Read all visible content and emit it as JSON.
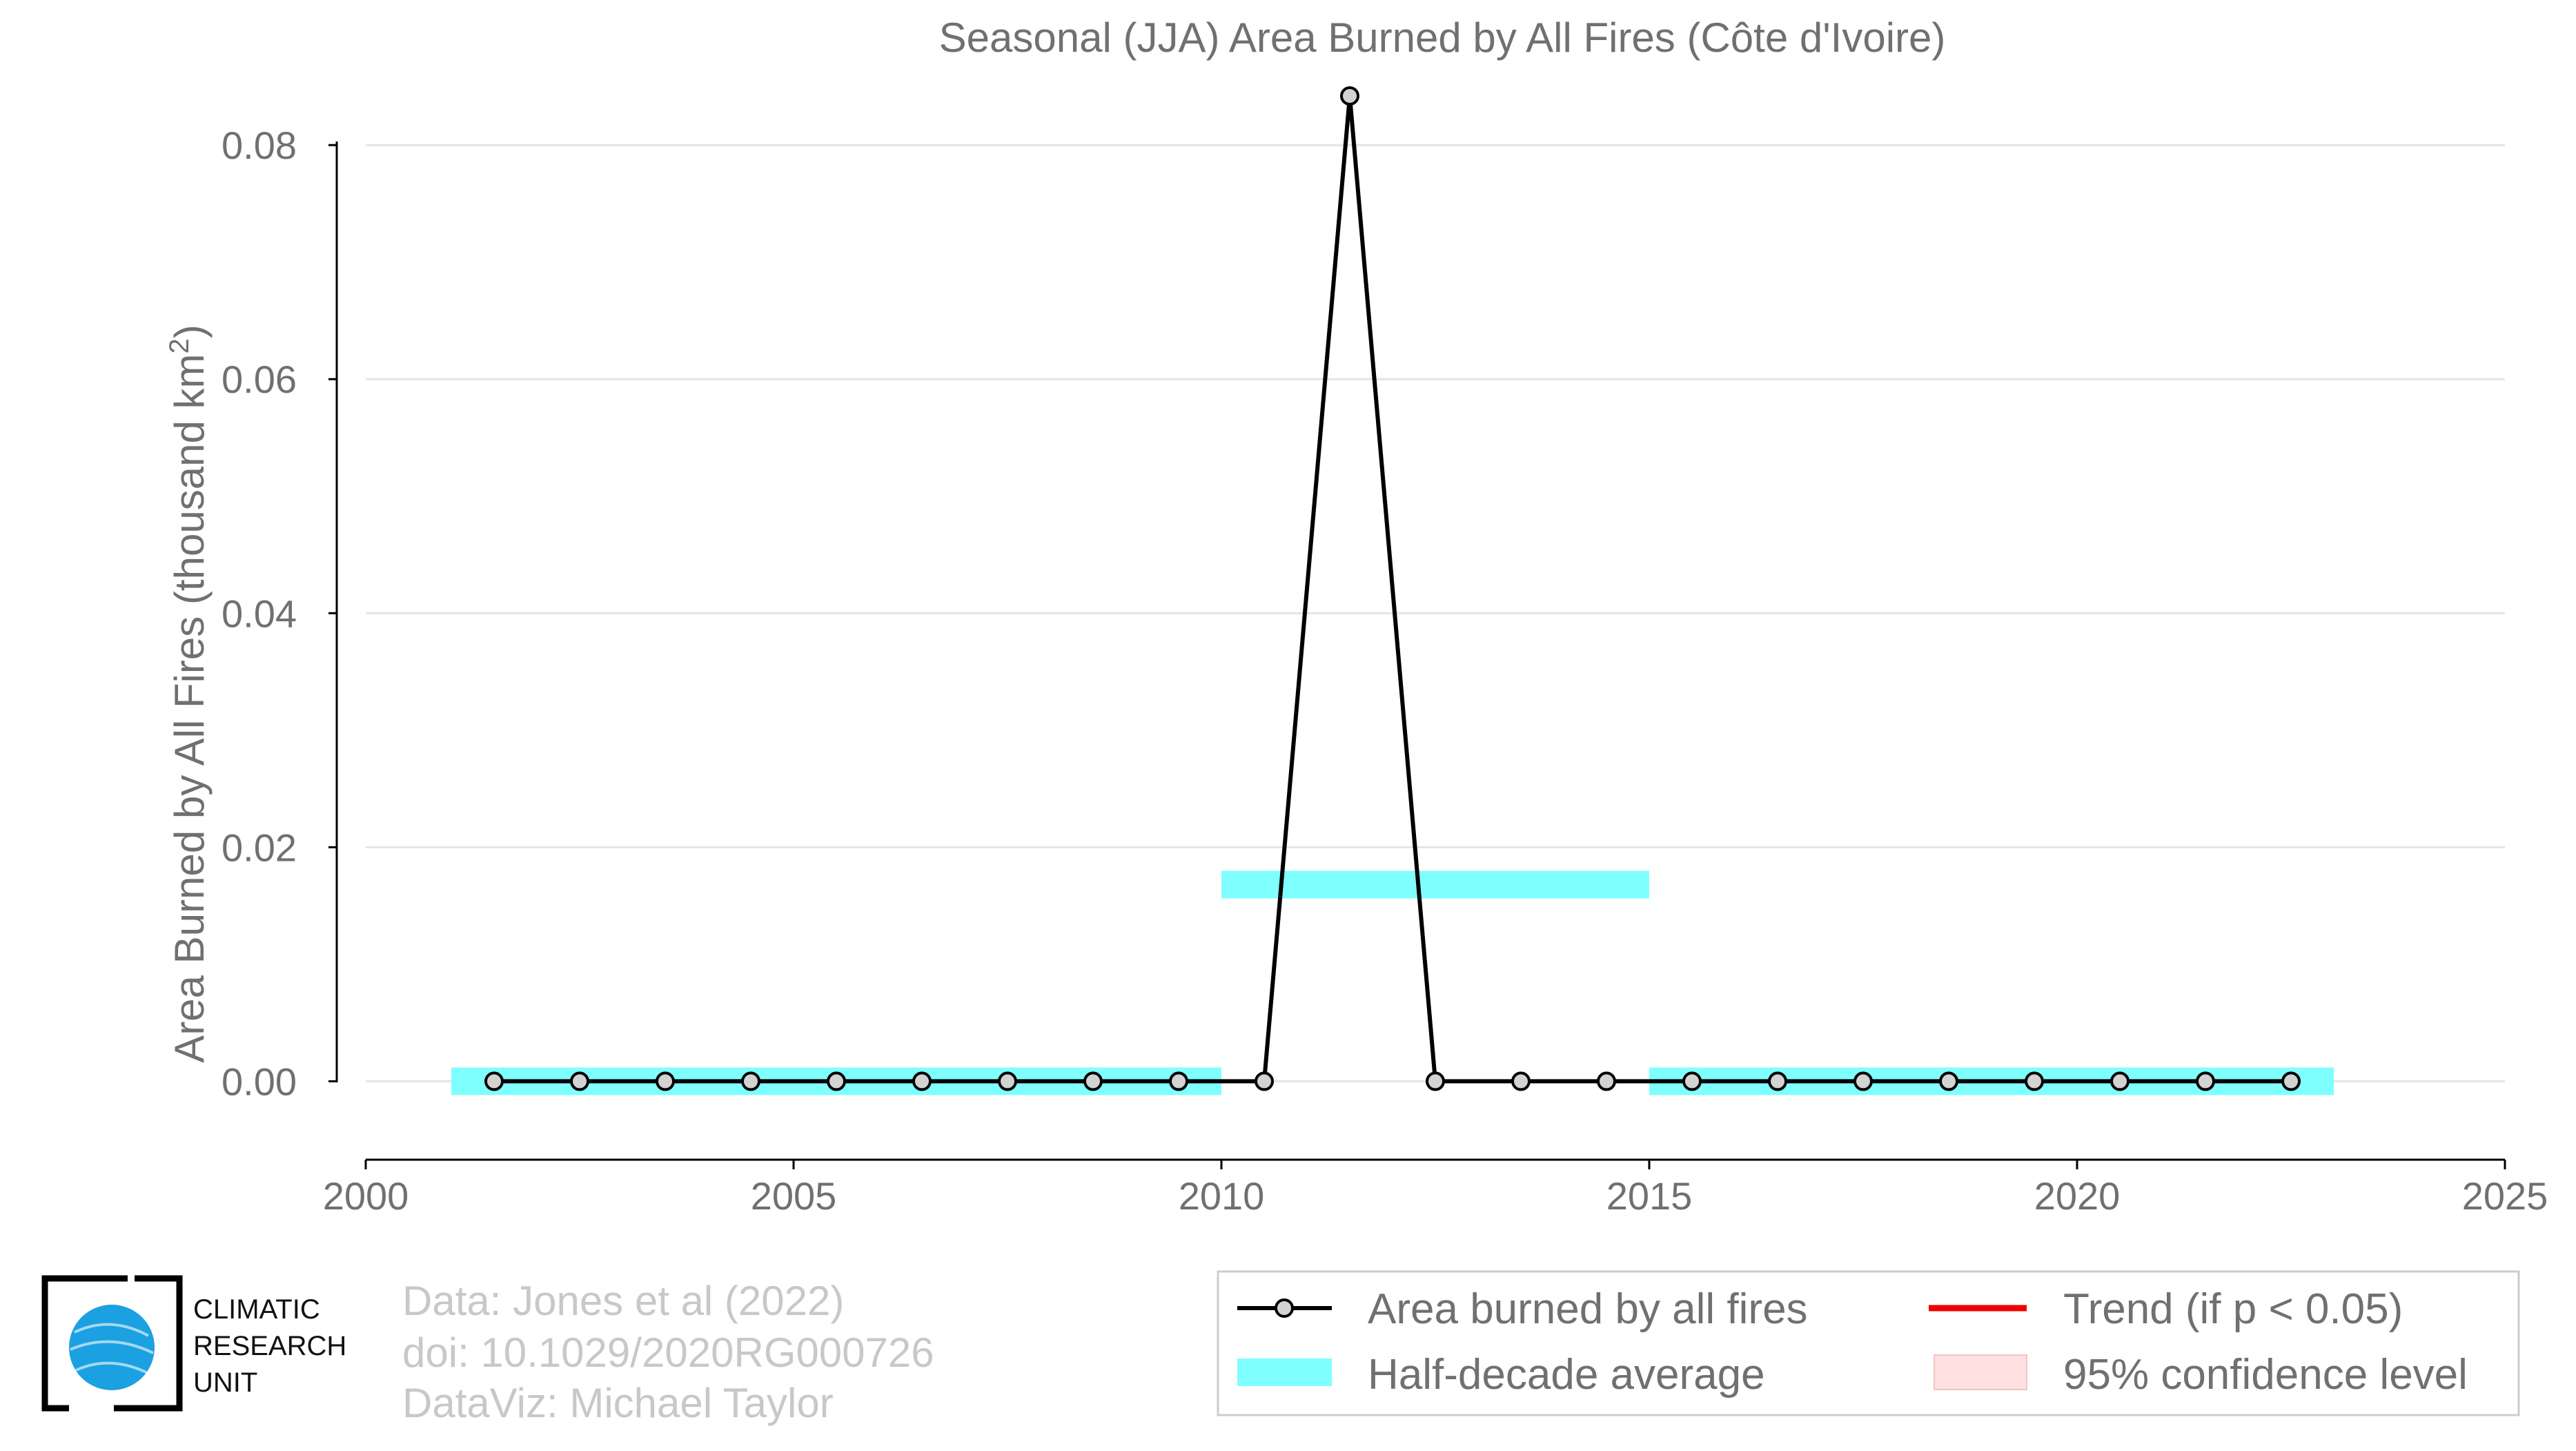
{
  "chart_data": {
    "type": "line",
    "title": "Seasonal (JJA) Area Burned by All Fires (Côte d'Ivoire)",
    "xlabel": "",
    "ylabel": "Area Burned by All Fires (thousand km",
    "ylabel_sup": "2",
    "ylabel_close": ")",
    "xlim": [
      2000,
      2025
    ],
    "ylim": [
      -0.0067,
      0.0865
    ],
    "x_ticks": [
      2000,
      2005,
      2010,
      2015,
      2020,
      2025
    ],
    "x_tick_labels": [
      "2000",
      "2005",
      "2010",
      "2015",
      "2020",
      "2025"
    ],
    "y_ticks": [
      0.0,
      0.02,
      0.04,
      0.06,
      0.08
    ],
    "y_tick_labels": [
      "0.00",
      "0.02",
      "0.04",
      "0.06",
      "0.08"
    ],
    "grid": "horizontal",
    "series": [
      {
        "name": "Area burned by all fires",
        "color": "#000000",
        "marker_fill": "#d3d3d3",
        "x": [
          2001.5,
          2002.5,
          2003.5,
          2004.5,
          2005.5,
          2006.5,
          2007.5,
          2008.5,
          2009.5,
          2010.5,
          2011.5,
          2012.5,
          2013.5,
          2014.5,
          2015.5,
          2016.5,
          2017.5,
          2018.5,
          2019.5,
          2020.5,
          2021.5,
          2022.5
        ],
        "y": [
          0,
          0,
          0,
          0,
          0,
          0,
          0,
          0,
          0,
          0,
          0.0842,
          0,
          0,
          0,
          0,
          0,
          0,
          0,
          0,
          0,
          0,
          0
        ]
      }
    ],
    "half_decade_average": {
      "name": "Half-decade average",
      "color": "#80ffff",
      "segments": [
        {
          "x_start": 2001,
          "x_end": 2010,
          "y": 0.0
        },
        {
          "x_start": 2010,
          "x_end": 2015,
          "y": 0.0168
        },
        {
          "x_start": 2015,
          "x_end": 2023,
          "y": 0.0
        }
      ]
    },
    "legend": {
      "placement": "bottom-right",
      "entries": [
        {
          "label": "Area burned by all fires",
          "kind": "line-marker",
          "color": "#000000"
        },
        {
          "label": "Trend (if p < 0.05)",
          "kind": "line",
          "color": "#ee0000"
        },
        {
          "label": "Half-decade average",
          "kind": "band",
          "color": "#80ffff"
        },
        {
          "label": "95% confidence level",
          "kind": "patch",
          "color": "#ffe0e0"
        }
      ]
    }
  },
  "credits": {
    "line1": "Data: Jones et al (2022)",
    "line2": "doi: 10.1029/2020RG000726",
    "line3": "DataViz: Michael Taylor"
  },
  "logo": {
    "line1": "CLIMATIC",
    "line2": "RESEARCH",
    "line3": "UNIT",
    "globe_color": "#1ba1e2"
  }
}
